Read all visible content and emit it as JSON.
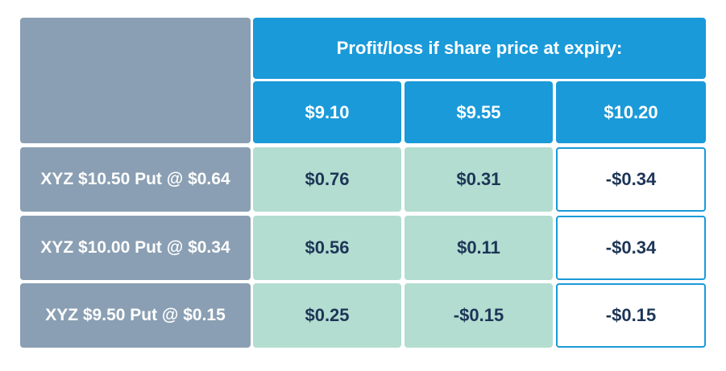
{
  "table": {
    "header_title": "Profit/loss if share price at expiry:",
    "prices": [
      "$9.10",
      "$9.55",
      "$10.20"
    ],
    "rows": [
      {
        "label": "XYZ $10.50 Put @ $0.64",
        "values": [
          "$0.76",
          "$0.31",
          "-$0.34"
        ]
      },
      {
        "label": "XYZ $10.00 Put @ $0.34",
        "values": [
          "$0.56",
          "$0.11",
          "-$0.34"
        ]
      },
      {
        "label": "XYZ $9.50 Put @ $0.15",
        "values": [
          "$0.25",
          "-$0.15",
          "-$0.15"
        ]
      }
    ],
    "colors": {
      "header_blue": "#1a9ad9",
      "label_gray": "#8a9fb3",
      "profit_green": "#b3ddd0",
      "loss_white": "#ffffff",
      "text_dark": "#1d3557"
    }
  }
}
